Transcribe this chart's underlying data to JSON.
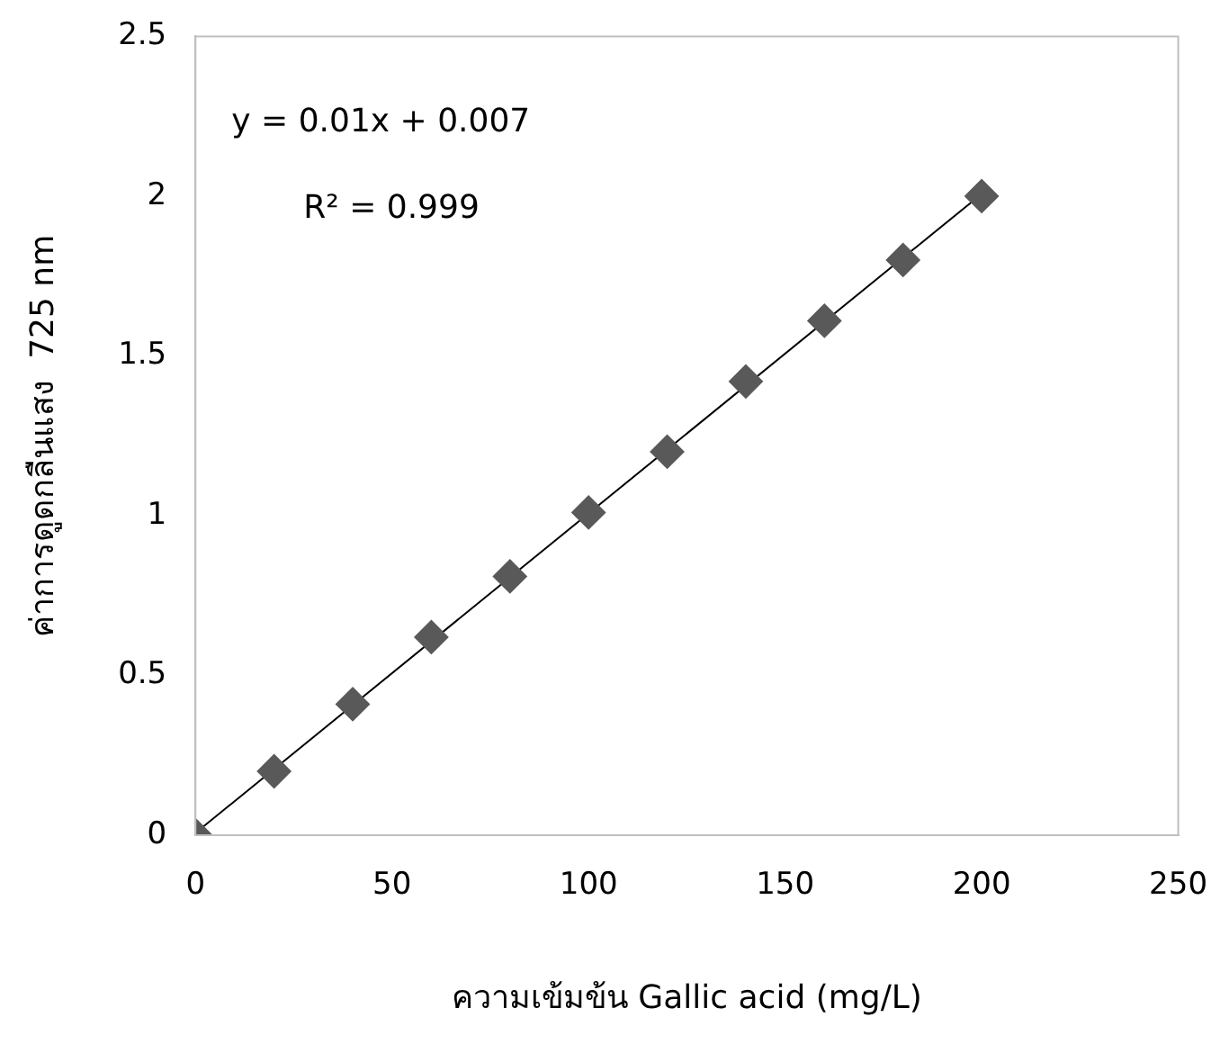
{
  "chart_data": {
    "type": "scatter",
    "xlabel": "ความเข้มข้น Gallic acid (mg/L)",
    "ylabel": "ค่าการดูดกลืนแสง  725 nm",
    "annotations": [
      "y = 0.01x + 0.007",
      "R² = 0.999"
    ],
    "x": [
      0,
      20,
      40,
      60,
      80,
      100,
      120,
      140,
      160,
      180,
      200
    ],
    "series": [
      {
        "type": "scatter",
        "color": "#595959",
        "marker": "diamond",
        "values": [
          0,
          0.2,
          0.41,
          0.62,
          0.81,
          1.01,
          1.2,
          1.42,
          1.61,
          1.8,
          2.0
        ]
      },
      {
        "type": "line",
        "color": "#000000",
        "x": [
          0,
          200
        ],
        "values": [
          0.007,
          2.007
        ],
        "marker": "none",
        "line_style": "solid"
      }
    ],
    "xlim": [
      0,
      250
    ],
    "xticks": [
      0,
      50,
      100,
      150,
      200,
      250
    ],
    "ylim": [
      0,
      2.5
    ],
    "yticks": [
      0,
      0.5,
      1,
      1.5,
      2,
      2.5
    ],
    "grid": false,
    "legend": false
  }
}
